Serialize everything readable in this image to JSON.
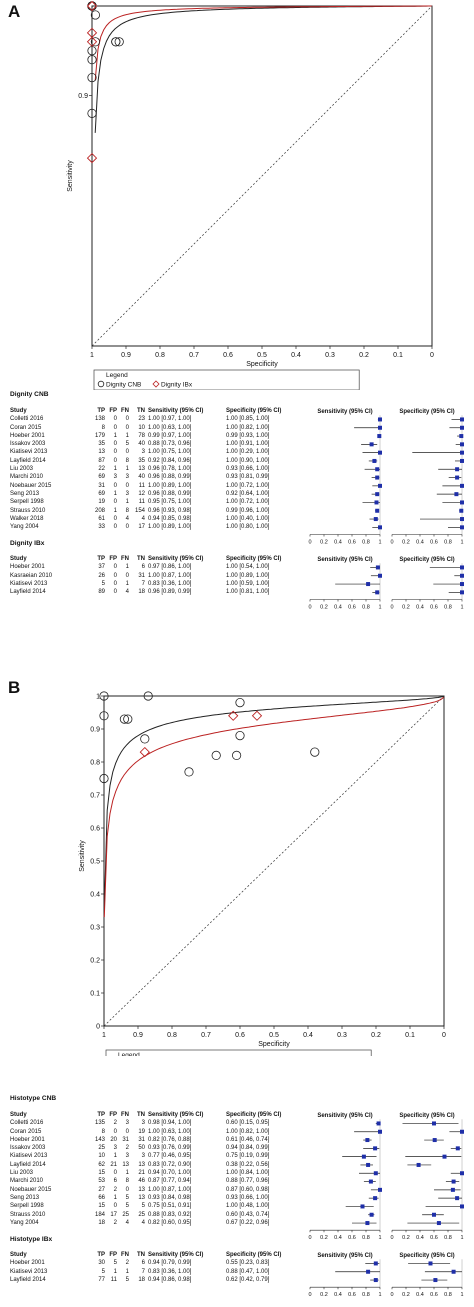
{
  "panels": [
    {
      "letter": "A",
      "sroc": {
        "xlabel": "Specificity",
        "ylabel": "Sensitivity",
        "xticks": [
          "1",
          "0.9",
          "0.8",
          "0.7",
          "0.6",
          "0.5",
          "0.4",
          "0.3",
          "0.2",
          "0.1",
          "0"
        ],
        "yticks": [
          "0.9"
        ],
        "legend_title": "Legend",
        "legend_items": [
          "Dignity CNB",
          "Dignity IBx"
        ]
      },
      "groups": [
        {
          "title": "Dignity CNB",
          "header": [
            "Study",
            "TP",
            "FP",
            "FN",
            "TN",
            "Sensitivity (95% CI)",
            "Specificity (95% CI)"
          ],
          "forest_headers": [
            "Sensitivity (95% CI)",
            "Specificity (95% CI)"
          ],
          "axis_ticks": [
            "0",
            "0.2",
            "0.4",
            "0.6",
            "0.8",
            "1"
          ],
          "rows": [
            [
              "Colletti 2016",
              "138",
              "0",
              "0",
              "23",
              "1.00 [0.97, 1.00]",
              "1.00 [0.85, 1.00]"
            ],
            [
              "Coran 2015",
              "8",
              "0",
              "0",
              "10",
              "1.00 [0.63, 1.00]",
              "1.00 [0.82, 1.00]"
            ],
            [
              "Hoeber 2001",
              "179",
              "1",
              "1",
              "78",
              "0.99 [0.97, 1.00]",
              "0.99 [0.93, 1.00]"
            ],
            [
              "Issakov 2003",
              "35",
              "0",
              "5",
              "40",
              "0.88 [0.73, 0.96]",
              "1.00 [0.91, 1.00]"
            ],
            [
              "Kiatisevi 2013",
              "13",
              "0",
              "0",
              "3",
              "1.00 [0.75, 1.00]",
              "1.00 [0.29, 1.00]"
            ],
            [
              "Layfield 2014",
              "87",
              "0",
              "8",
              "35",
              "0.92 [0.84, 0.96]",
              "1.00 [0.90, 1.00]"
            ],
            [
              "Liu 2003",
              "22",
              "1",
              "1",
              "13",
              "0.96 [0.78, 1.00]",
              "0.93 [0.66, 1.00]"
            ],
            [
              "Marchi 2010",
              "69",
              "3",
              "3",
              "40",
              "0.96 [0.88, 0.99]",
              "0.93 [0.81, 0.99]"
            ],
            [
              "Noebauer 2015",
              "31",
              "0",
              "0",
              "11",
              "1.00 [0.89, 1.00]",
              "1.00 [0.72, 1.00]"
            ],
            [
              "Seng 2013",
              "69",
              "1",
              "3",
              "12",
              "0.96 [0.88, 0.99]",
              "0.92 [0.64, 1.00]"
            ],
            [
              "Serpell 1998",
              "19",
              "0",
              "1",
              "11",
              "0.95 [0.75, 1.00]",
              "1.00 [0.72, 1.00]"
            ],
            [
              "Strauss 2010",
              "208",
              "1",
              "8",
              "154",
              "0.96 [0.93, 0.98]",
              "0.99 [0.96, 1.00]"
            ],
            [
              "Walker 2018",
              "61",
              "0",
              "4",
              "4",
              "0.94 [0.85, 0.98]",
              "1.00 [0.40, 1.00]"
            ],
            [
              "Yang 2004",
              "33",
              "0",
              "0",
              "17",
              "1.00 [0.89, 1.00]",
              "1.00 [0.80, 1.00]"
            ]
          ]
        },
        {
          "title": "Dignity IBx",
          "header": [
            "Study",
            "TP",
            "FP",
            "FN",
            "TN",
            "Sensitivity (95% CI)",
            "Specificity (95% CI)"
          ],
          "forest_headers": [
            "Sensitivity (95% CI)",
            "Specificity (95% CI)"
          ],
          "axis_ticks": [
            "0",
            "0.2",
            "0.4",
            "0.6",
            "0.8",
            "1"
          ],
          "rows": [
            [
              "Hoeber 2001",
              "37",
              "0",
              "1",
              "6",
              "0.97 [0.86, 1.00]",
              "1.00 [0.54, 1.00]"
            ],
            [
              "Kasraeian 2010",
              "26",
              "0",
              "0",
              "31",
              "1.00 [0.87, 1.00]",
              "1.00 [0.89, 1.00]"
            ],
            [
              "Kiatisevi 2013",
              "5",
              "0",
              "1",
              "7",
              "0.83 [0.36, 1.00]",
              "1.00 [0.59, 1.00]"
            ],
            [
              "Layfield 2014",
              "89",
              "0",
              "4",
              "18",
              "0.96 [0.89, 0.99]",
              "1.00 [0.81, 1.00]"
            ]
          ]
        }
      ]
    },
    {
      "letter": "B",
      "sroc": {
        "xlabel": "Specificity",
        "ylabel": "Sensitivity",
        "xticks": [
          "1",
          "0.9",
          "0.8",
          "0.7",
          "0.6",
          "0.5",
          "0.4",
          "0.3",
          "0.2",
          "0.1",
          "0"
        ],
        "yticks": [
          "1",
          "0.9",
          "0.8",
          "0.7",
          "0.6",
          "0.5",
          "0.4",
          "0.3",
          "0.2",
          "0.1",
          "0"
        ],
        "legend_title": "Legend",
        "legend_items": [
          "Histotype CNB",
          "Histotype IBx"
        ]
      },
      "groups": [
        {
          "title": "Histotype CNB",
          "header": [
            "Study",
            "TP",
            "FP",
            "FN",
            "TN",
            "Sensitivity (95% CI)",
            "Specificity (95% CI)"
          ],
          "forest_headers": [
            "Sensitivity (95% CI)",
            "Specificity (95% CI)"
          ],
          "axis_ticks": [
            "0",
            "0.2",
            "0.4",
            "0.6",
            "0.8",
            "1"
          ],
          "rows": [
            [
              "Colletti 2016",
              "135",
              "2",
              "3",
              "3",
              "0.98 [0.94, 1.00]",
              "0.60 [0.15, 0.95]"
            ],
            [
              "Coran 2015",
              "8",
              "0",
              "0",
              "19",
              "1.00 [0.63, 1.00]",
              "1.00 [0.82, 1.00]"
            ],
            [
              "Hoeber 2001",
              "143",
              "20",
              "31",
              "31",
              "0.82 [0.76, 0.88]",
              "0.61 [0.46, 0.74]"
            ],
            [
              "Issakov 2003",
              "25",
              "3",
              "2",
              "50",
              "0.93 [0.76, 0.99]",
              "0.94 [0.84, 0.99]"
            ],
            [
              "Kiatisevi 2013",
              "10",
              "1",
              "3",
              "3",
              "0.77 [0.46, 0.95]",
              "0.75 [0.19, 0.99]"
            ],
            [
              "Layfield 2014",
              "62",
              "21",
              "13",
              "13",
              "0.83 [0.72, 0.90]",
              "0.38 [0.22, 0.56]"
            ],
            [
              "Liu 2003",
              "15",
              "0",
              "1",
              "21",
              "0.94 [0.70, 1.00]",
              "1.00 [0.84, 1.00]"
            ],
            [
              "Marchi 2010",
              "53",
              "6",
              "8",
              "46",
              "0.87 [0.77, 0.94]",
              "0.88 [0.77, 0.96]"
            ],
            [
              "Noebauer 2015",
              "27",
              "2",
              "0",
              "13",
              "1.00 [0.87, 1.00]",
              "0.87 [0.60, 0.98]"
            ],
            [
              "Seng 2013",
              "66",
              "1",
              "5",
              "13",
              "0.93 [0.84, 0.98]",
              "0.93 [0.66, 1.00]"
            ],
            [
              "Serpell 1998",
              "15",
              "0",
              "5",
              "5",
              "0.75 [0.51, 0.91]",
              "1.00 [0.48, 1.00]"
            ],
            [
              "Strauss 2010",
              "184",
              "17",
              "25",
              "25",
              "0.88 [0.83, 0.92]",
              "0.60 [0.43, 0.74]"
            ],
            [
              "Yang 2004",
              "18",
              "2",
              "4",
              "4",
              "0.82 [0.60, 0.95]",
              "0.67 [0.22, 0.96]"
            ]
          ]
        },
        {
          "title": "Histotype IBx",
          "header": [
            "Study",
            "TP",
            "FP",
            "FN",
            "TN",
            "Sensitivity (95% CI)",
            "Specificity (95% CI)"
          ],
          "forest_headers": [
            "Sensitivity (95% CI)",
            "Specificity (95% CI)"
          ],
          "axis_ticks": [
            "0",
            "0.2",
            "0.4",
            "0.6",
            "0.8",
            "1"
          ],
          "rows": [
            [
              "Hoeber 2001",
              "30",
              "5",
              "2",
              "6",
              "0.94 [0.79, 0.99]",
              "0.55 [0.23, 0.83]"
            ],
            [
              "Kiatisevi 2013",
              "5",
              "1",
              "1",
              "7",
              "0.83 [0.36, 1.00]",
              "0.88 [0.47, 1.00]"
            ],
            [
              "Layfield 2014",
              "77",
              "11",
              "5",
              "18",
              "0.94 [0.86, 0.98]",
              "0.62 [0.42, 0.79]"
            ]
          ]
        }
      ]
    }
  ],
  "chart_data": [
    {
      "type": "scatter",
      "xlabel": "Specificity",
      "ylabel": "Sensitivity",
      "xlim": [
        1,
        0
      ],
      "series": [
        {
          "name": "Dignity CNB",
          "points": [
            [
              1.0,
              1.0
            ],
            [
              1.0,
              1.0
            ],
            [
              0.99,
              0.99
            ],
            [
              1.0,
              0.88
            ],
            [
              1.0,
              1.0
            ],
            [
              1.0,
              0.92
            ],
            [
              0.93,
              0.96
            ],
            [
              0.93,
              0.96
            ],
            [
              1.0,
              1.0
            ],
            [
              0.92,
              0.96
            ],
            [
              1.0,
              0.95
            ],
            [
              0.99,
              0.96
            ],
            [
              1.0,
              0.94
            ],
            [
              1.0,
              1.0
            ]
          ]
        },
        {
          "name": "Dignity IBx",
          "points": [
            [
              1.0,
              0.97
            ],
            [
              1.0,
              1.0
            ],
            [
              1.0,
              0.83
            ],
            [
              1.0,
              0.96
            ]
          ]
        }
      ]
    },
    {
      "type": "scatter",
      "xlabel": "Specificity",
      "ylabel": "Sensitivity",
      "xlim": [
        1,
        0
      ],
      "ylim": [
        0,
        1
      ],
      "series": [
        {
          "name": "Histotype CNB",
          "points": [
            [
              0.6,
              0.98
            ],
            [
              1.0,
              1.0
            ],
            [
              0.61,
              0.82
            ],
            [
              0.94,
              0.93
            ],
            [
              0.75,
              0.77
            ],
            [
              0.38,
              0.83
            ],
            [
              1.0,
              0.94
            ],
            [
              0.88,
              0.87
            ],
            [
              0.87,
              1.0
            ],
            [
              0.93,
              0.93
            ],
            [
              1.0,
              0.75
            ],
            [
              0.6,
              0.88
            ],
            [
              0.67,
              0.82
            ]
          ]
        },
        {
          "name": "Histotype IBx",
          "points": [
            [
              0.55,
              0.94
            ],
            [
              0.88,
              0.83
            ],
            [
              0.62,
              0.94
            ]
          ]
        }
      ]
    }
  ]
}
